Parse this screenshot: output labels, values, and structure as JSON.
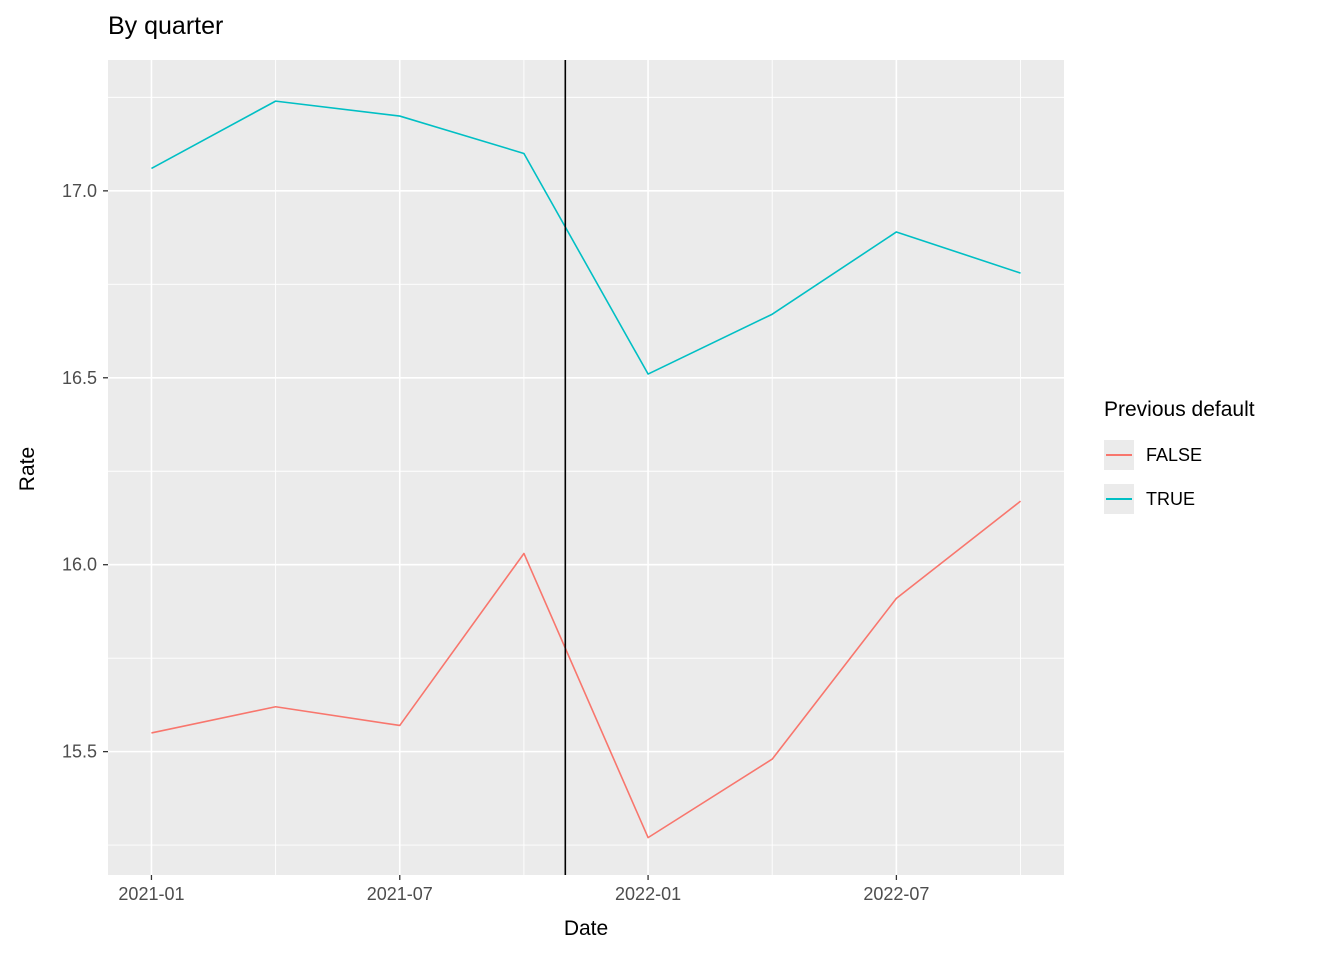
{
  "chart_data": {
    "type": "line",
    "title": "By quarter",
    "xlabel": "Date",
    "ylabel": "Rate",
    "x_unit": "months since 2021-01",
    "x": [
      0,
      3,
      6,
      9,
      12,
      15,
      18,
      21
    ],
    "x_dates": [
      "2021-01",
      "2021-04",
      "2021-07",
      "2021-10",
      "2022-01",
      "2022-04",
      "2022-07",
      "2022-10"
    ],
    "series": [
      {
        "name": "FALSE",
        "color": "#F8766D",
        "values": [
          15.55,
          15.62,
          15.57,
          16.03,
          15.27,
          15.48,
          15.91,
          16.17
        ]
      },
      {
        "name": "TRUE",
        "color": "#00BFC4",
        "values": [
          17.06,
          17.24,
          17.2,
          17.1,
          16.51,
          16.67,
          16.89,
          16.78
        ]
      }
    ],
    "vline": {
      "x_month": 10,
      "date": "2021-11",
      "color": "#000000"
    },
    "xlim": [
      -1.05,
      22.05
    ],
    "ylim": [
      15.17,
      17.35
    ],
    "x_ticks": [
      {
        "month": 0,
        "label": "2021-01"
      },
      {
        "month": 6,
        "label": "2021-07"
      },
      {
        "month": 12,
        "label": "2022-01"
      },
      {
        "month": 18,
        "label": "2022-07"
      }
    ],
    "x_minor": [
      3,
      9,
      15,
      21
    ],
    "y_ticks": [
      {
        "value": 15.5,
        "label": "15.5"
      },
      {
        "value": 16.0,
        "label": "16.0"
      },
      {
        "value": 16.5,
        "label": "16.5"
      },
      {
        "value": 17.0,
        "label": "17.0"
      }
    ],
    "y_minor": [
      15.25,
      15.75,
      16.25,
      16.75,
      17.25
    ],
    "legend": {
      "title": "Previous default",
      "entries": [
        "FALSE",
        "TRUE"
      ]
    },
    "panel_background": "#EBEBEB",
    "grid_color": "#FFFFFF",
    "tick_label_color": "#4D4D4D",
    "tick_mark_color": "#333333"
  }
}
